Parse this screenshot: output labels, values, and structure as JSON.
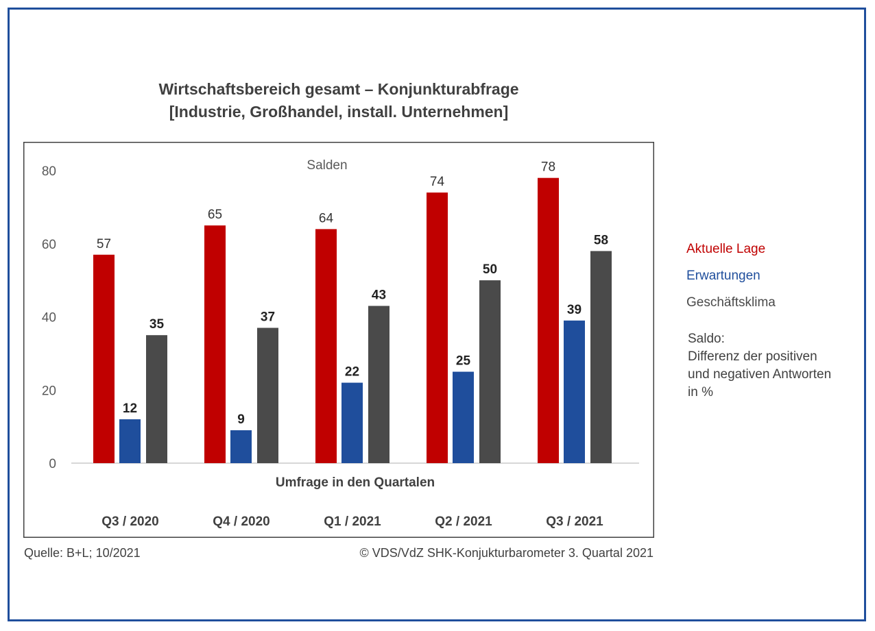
{
  "chart_data": {
    "type": "bar",
    "title": "Wirtschaftsbereich gesamt – Konjunkturabfrage",
    "subtitle": "[Industrie, Großhandel, install. Unternehmen]",
    "inner_label": "Salden",
    "xlabel": "Umfrage in den Quartalen",
    "ylabel": "",
    "ylim": [
      0,
      80
    ],
    "yticks": [
      0,
      20,
      40,
      60,
      80
    ],
    "grid": false,
    "legend_placement": "right",
    "categories": [
      "Q3 / 2020",
      "Q4 / 2020",
      "Q1 / 2021",
      "Q2 / 2021",
      "Q3 / 2021"
    ],
    "series": [
      {
        "name": "Aktuelle Lage",
        "color": "#c00000",
        "values": [
          57,
          65,
          64,
          74,
          78
        ]
      },
      {
        "name": "Erwartungen",
        "color": "#1f4e9c",
        "values": [
          12,
          9,
          22,
          25,
          39
        ]
      },
      {
        "name": "Geschäftsklima",
        "color": "#4a4a4a",
        "values": [
          35,
          37,
          43,
          50,
          58
        ]
      }
    ]
  },
  "note": {
    "line1": "Saldo:",
    "line2": "Differenz der positiven",
    "line3": "und negativen Antworten",
    "line4": "in %"
  },
  "footer": {
    "source": "Quelle: B+L; 10/2021",
    "copyright": "© VDS/VdZ SHK-Konjukturbarometer 3. Quartal 2021"
  }
}
